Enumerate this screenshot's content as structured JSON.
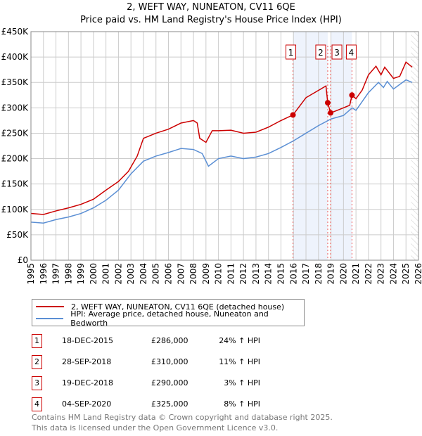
{
  "chart_data": {
    "type": "line",
    "title": "2, WEFT WAY, NUNEATON, CV11 6QE",
    "subtitle": "Price paid vs. HM Land Registry's House Price Index (HPI)",
    "xlim": [
      1995,
      2026
    ],
    "ylim": [
      0,
      450000
    ],
    "x_ticks": [
      "1995",
      "1996",
      "1997",
      "1998",
      "1999",
      "2000",
      "2001",
      "2002",
      "2003",
      "2004",
      "2005",
      "2006",
      "2007",
      "2008",
      "2009",
      "2010",
      "2011",
      "2012",
      "2013",
      "2014",
      "2015",
      "2016",
      "2017",
      "2018",
      "2019",
      "2020",
      "2021",
      "2022",
      "2023",
      "2024",
      "2025",
      "2026"
    ],
    "y_ticks": [
      {
        "v": 0,
        "l": "£0"
      },
      {
        "v": 50000,
        "l": "£50K"
      },
      {
        "v": 100000,
        "l": "£100K"
      },
      {
        "v": 150000,
        "l": "£150K"
      },
      {
        "v": 200000,
        "l": "£200K"
      },
      {
        "v": 250000,
        "l": "£250K"
      },
      {
        "v": 300000,
        "l": "£300K"
      },
      {
        "v": 350000,
        "l": "£350K"
      },
      {
        "v": 400000,
        "l": "£400K"
      },
      {
        "v": 450000,
        "l": "£450K"
      }
    ],
    "grid": true,
    "series": [
      {
        "name": "2, WEFT WAY, NUNEATON, CV11 6QE (detached house)",
        "color": "#cc0000",
        "x": [
          1995,
          1996,
          1997,
          1998,
          1999,
          2000,
          2001,
          2002,
          2002.8,
          2003.5,
          2004,
          2005,
          2006,
          2007,
          2008,
          2008.3,
          2008.5,
          2009,
          2009.5,
          2010,
          2011,
          2012,
          2013,
          2014,
          2015,
          2015.96,
          2017,
          2018.6,
          2018.74,
          2018.97,
          2019.5,
          2020.5,
          2020.68,
          2021,
          2021.5,
          2022,
          2022.6,
          2023,
          2023.3,
          2024,
          2024.5,
          2025,
          2025.5
        ],
        "y": [
          92000,
          90000,
          97000,
          103000,
          110000,
          120000,
          138000,
          155000,
          175000,
          205000,
          240000,
          250000,
          258000,
          270000,
          275000,
          270000,
          240000,
          232000,
          255000,
          255000,
          256000,
          250000,
          252000,
          262000,
          275000,
          286000,
          320000,
          343000,
          310000,
          290000,
          295000,
          305000,
          325000,
          318000,
          335000,
          365000,
          382000,
          365000,
          380000,
          358000,
          362000,
          390000,
          380000
        ]
      },
      {
        "name": "HPI: Average price, detached house, Nuneaton and Bedworth",
        "color": "#5b8fd4",
        "x": [
          1995,
          1996,
          1997,
          1998,
          1999,
          2000,
          2001,
          2002,
          2003,
          2004,
          2005,
          2006,
          2007,
          2008,
          2008.7,
          2009.2,
          2010,
          2011,
          2012,
          2013,
          2014,
          2015,
          2016,
          2017,
          2018,
          2019,
          2020,
          2020.7,
          2021,
          2022,
          2022.8,
          2023.2,
          2023.5,
          2024,
          2025,
          2025.5
        ],
        "y": [
          75000,
          73000,
          80000,
          85000,
          92000,
          103000,
          118000,
          138000,
          170000,
          195000,
          205000,
          212000,
          220000,
          218000,
          210000,
          185000,
          200000,
          205000,
          200000,
          203000,
          210000,
          222000,
          235000,
          250000,
          265000,
          278000,
          285000,
          300000,
          295000,
          330000,
          350000,
          340000,
          352000,
          337000,
          355000,
          350000
        ]
      }
    ],
    "sales": [
      {
        "id": "1",
        "x": 2015.96,
        "y": 286000
      },
      {
        "id": "2",
        "x": 2018.74,
        "y": 310000
      },
      {
        "id": "3",
        "x": 2018.97,
        "y": 290000
      },
      {
        "id": "4",
        "x": 2020.68,
        "y": 325000
      }
    ],
    "shaded_ranges": [
      [
        2015.96,
        2018.74
      ],
      [
        2018.97,
        2020.68
      ]
    ],
    "forecast_from": 2025.4,
    "legend_position": "below"
  },
  "table": [
    {
      "id": "1",
      "date": "18-DEC-2015",
      "price": "£286,000",
      "hpi": "24% ↑ HPI"
    },
    {
      "id": "2",
      "date": "28-SEP-2018",
      "price": "£310,000",
      "hpi": "11% ↑ HPI"
    },
    {
      "id": "3",
      "date": "19-DEC-2018",
      "price": "£290,000",
      "hpi": "3% ↑ HPI"
    },
    {
      "id": "4",
      "date": "04-SEP-2020",
      "price": "£325,000",
      "hpi": "8% ↑ HPI"
    }
  ],
  "footer": [
    "Contains HM Land Registry data © Crown copyright and database right 2025.",
    "This data is licensed under the Open Government Licence v3.0."
  ]
}
